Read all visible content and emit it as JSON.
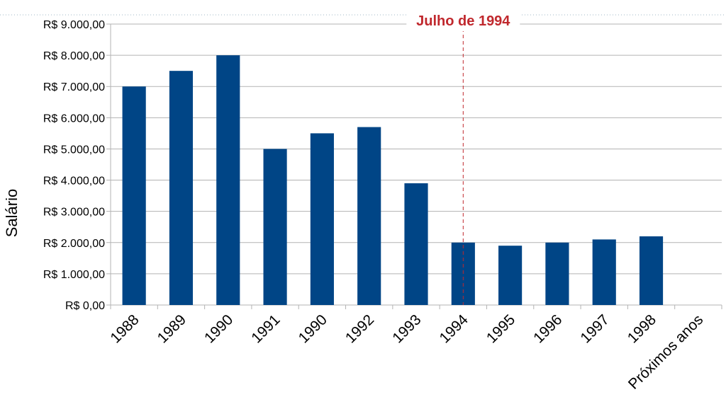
{
  "colors": {
    "bar": "#004586",
    "grid": "#b3b3b3",
    "annotation": "#c0282d",
    "top_border": "#9fb7c7"
  },
  "chart_data": {
    "type": "bar",
    "categories": [
      "1988",
      "1989",
      "1990",
      "1991",
      "1990",
      "1992",
      "1993",
      "1994",
      "1995",
      "1996",
      "1997",
      "1998",
      "Próximos anos"
    ],
    "values": [
      7000,
      7500,
      8000,
      5000,
      5500,
      5700,
      3900,
      2000,
      1900,
      2000,
      2100,
      2200,
      null
    ],
    "ylabel": "Salário",
    "xlabel": "",
    "ylim": [
      0,
      9000
    ],
    "yticks": [
      0,
      1000,
      2000,
      3000,
      4000,
      5000,
      6000,
      7000,
      8000,
      9000
    ],
    "ytick_labels": [
      "R$ 0,00",
      "R$ 1.000,00",
      "R$ 2.000,00",
      "R$ 3.000,00",
      "R$ 4.000,00",
      "R$ 5.000,00",
      "R$ 6.000,00",
      "R$ 7.000,00",
      "R$ 8.000,00",
      "R$ 9.000,00"
    ],
    "grid": true,
    "legend": "none",
    "annotation": {
      "text": "Julho de 1994",
      "at_category": "1994",
      "line_style": "dashed"
    }
  }
}
